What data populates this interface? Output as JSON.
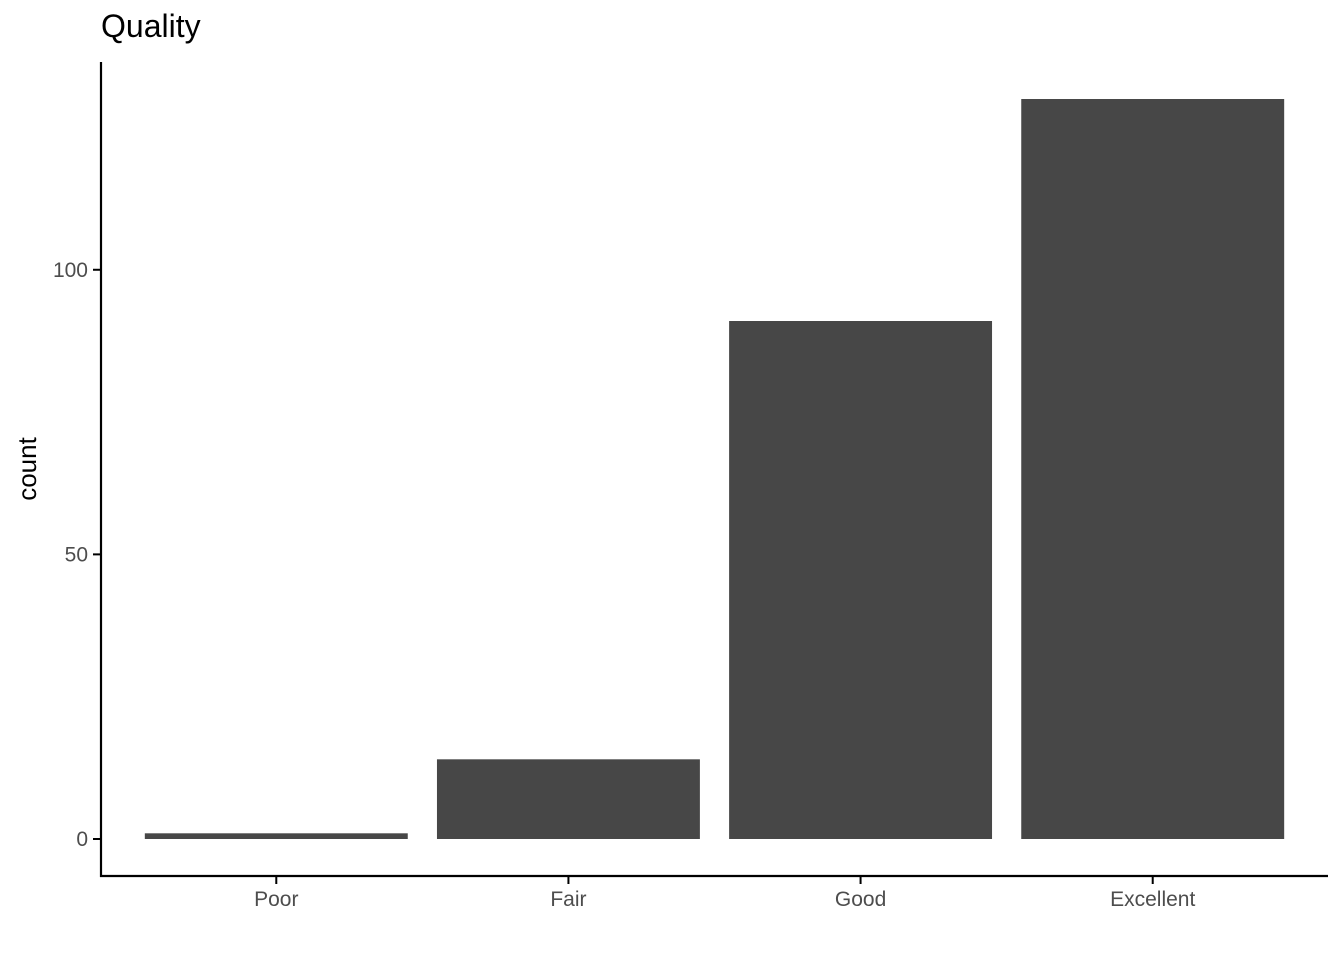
{
  "chart_data": {
    "type": "bar",
    "title": "Quality",
    "xlabel": "",
    "ylabel": "count",
    "categories": [
      "Poor",
      "Fair",
      "Good",
      "Excellent"
    ],
    "values": [
      1,
      14,
      91,
      130
    ],
    "ylim": [
      -6.5,
      136.5
    ],
    "yticks": [
      0,
      50,
      100
    ],
    "grid": false,
    "legend": "none",
    "bar_color": "#474747",
    "axis_color": "#000000",
    "tick_label_color": "#4d4d4d"
  }
}
